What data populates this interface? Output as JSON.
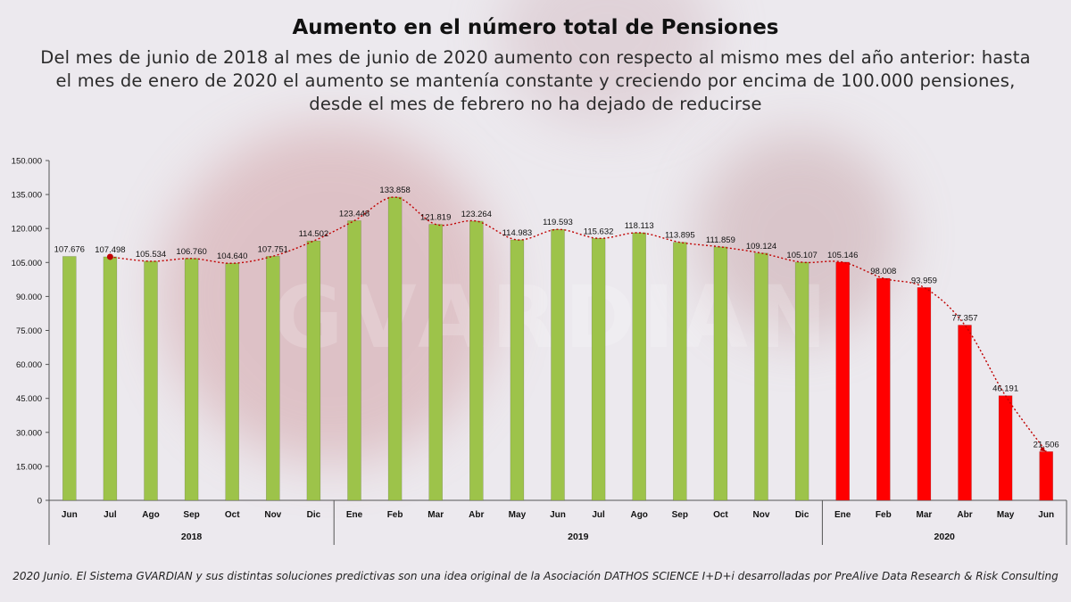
{
  "title": "Aumento en el número total de Pensiones",
  "subtitle": "Del mes de junio de 2018 al mes de junio de 2020 aumento con respecto al mismo mes del año anterior: hasta el mes de enero de 2020 el aumento se mantenía constante y creciendo por encima de 100.000 pensiones, desde el mes de febrero no ha dejado de reducirse",
  "watermark": "GVARDIAN",
  "footer": "2020 Junio. El Sistema GVARDIAN y sus distintas soluciones predictivas son una idea original de la Asociación DATHOS SCIENCE I+D+i desarrolladas por PreAlive Data Research & Risk Consulting",
  "colors": {
    "green": "#9dc34a",
    "red": "#ff0000",
    "trend": "#c00000"
  },
  "chart_data": {
    "type": "bar",
    "ylim": [
      0,
      150000
    ],
    "yticks": [
      "0",
      "15.000",
      "30.000",
      "45.000",
      "60.000",
      "75.000",
      "90.000",
      "105.000",
      "120.000",
      "135.000",
      "150.000"
    ],
    "categories": [
      "Jun",
      "Jul",
      "Ago",
      "Sep",
      "Oct",
      "Nov",
      "Dic",
      "Ene",
      "Feb",
      "Mar",
      "Abr",
      "May",
      "Jun",
      "Jul",
      "Ago",
      "Sep",
      "Oct",
      "Nov",
      "Dic",
      "Ene",
      "Feb",
      "Mar",
      "Abr",
      "May",
      "Jun"
    ],
    "values": [
      107676,
      107498,
      105534,
      106760,
      104640,
      107751,
      114502,
      123448,
      133858,
      121819,
      123264,
      114983,
      119593,
      115632,
      118113,
      113895,
      111859,
      109124,
      105107,
      105146,
      98008,
      93959,
      77357,
      46191,
      21506
    ],
    "labels": [
      "107.676",
      "107.498",
      "105.534",
      "106.760",
      "104.640",
      "107.751",
      "114.502",
      "123.448",
      "133.858",
      "121.819",
      "123.264",
      "114.983",
      "119.593",
      "115.632",
      "118.113",
      "113.895",
      "111.859",
      "109.124",
      "105.107",
      "105.146",
      "98.008",
      "93.959",
      "77.357",
      "46.191",
      "21.506"
    ],
    "years": [
      {
        "label": "2018",
        "start": 0,
        "end": 6
      },
      {
        "label": "2019",
        "start": 7,
        "end": 18
      },
      {
        "label": "2020",
        "start": 19,
        "end": 24
      }
    ],
    "bar_colors": [
      "green",
      "green",
      "green",
      "green",
      "green",
      "green",
      "green",
      "green",
      "green",
      "green",
      "green",
      "green",
      "green",
      "green",
      "green",
      "green",
      "green",
      "green",
      "green",
      "red",
      "red",
      "red",
      "red",
      "red",
      "red"
    ],
    "trend_line": {
      "style": "dotted",
      "from_index": 1
    },
    "grid": false,
    "legend": "none"
  }
}
